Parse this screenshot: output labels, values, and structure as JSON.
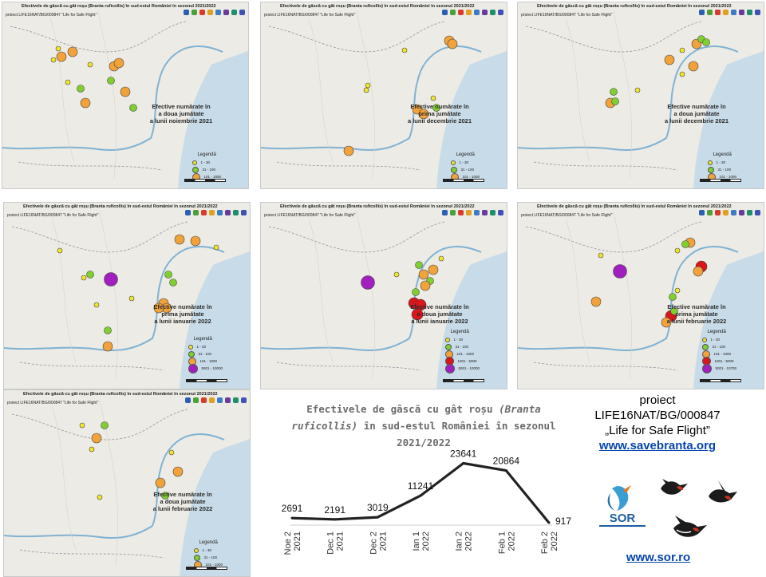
{
  "colors": {
    "water": "#c8dbe8",
    "land": "#ecebe5",
    "small": "#f2e52a",
    "medium": "#7fcf2e",
    "large": "#f2a23a",
    "xlarge": "#d8161b",
    "xxlarge": "#a21fbf",
    "line": "#222222"
  },
  "panels": [
    {
      "title": "Efectivele de gâscă cu gât roșu (Branta ruficollis) în sud-estul României în sezonul 2021/2022",
      "subtitle": "proiect LIFE16NAT/BG/000847 \"Life for Safe Flight\"",
      "caption": [
        "Efective numărate în",
        "a doua jumătate",
        "a lunii noiembrie 2021"
      ],
      "legend_title": "Legendă",
      "legend": [
        "1 - 30",
        "31 - 100",
        "101 - 1000"
      ]
    },
    {
      "title": "Efectivele de gâscă cu gât roșu (Branta ruficollis) în sud-estul României în sezonul 2021/2022",
      "subtitle": "proiect LIFE16NAT/BG/000847 \"Life for Safe Flight\"",
      "caption": [
        "Efective numărate în",
        "prima jumătate",
        "a lunii decembrie 2021"
      ],
      "legend_title": "Legendă",
      "legend": [
        "1 - 30",
        "31 - 100",
        "101 - 1000"
      ]
    },
    {
      "title": "Efectivele de gâscă cu gât roșu (Branta ruficollis) în sud-estul României în sezonul 2021/2022",
      "subtitle": "proiect LIFE16NAT/BG/000847 \"Life for Safe Flight\"",
      "caption": [
        "Efective numărate în",
        "a doua jumătate",
        "a lunii decembrie 2021"
      ],
      "legend_title": "Legendă",
      "legend": [
        "1 - 30",
        "31 - 100",
        "101 - 1000"
      ]
    },
    {
      "title": "Efectivele de gâscă cu gât roșu (Branta ruficollis) în sud-estul României în sezonul 2021/2022",
      "subtitle": "proiect LIFE16NAT/BG/000847 \"Life for Safe Flight\"",
      "caption": [
        "Efective numărate în",
        "prima jumătate",
        "a lunii ianuarie 2022"
      ],
      "legend_title": "Legendă",
      "legend": [
        "1 - 30",
        "31 - 100",
        "101 - 1000",
        "5001 - 10000"
      ]
    },
    {
      "title": "Efectivele de gâscă cu gât roșu (Branta ruficollis) în sud-estul României în sezonul 2021/2022",
      "subtitle": "proiect LIFE16NAT/BG/000847 \"Life for Safe Flight\"",
      "caption": [
        "Efective numărate în",
        "a doua jumătate",
        "a lunii ianuarie 2022"
      ],
      "legend_title": "Legendă",
      "legend": [
        "1 - 30",
        "31 - 100",
        "101 - 1000",
        "1001 - 5000",
        "5001 - 10000"
      ]
    },
    {
      "title": "Efectivele de gâscă cu gât roșu (Branta ruficollis) în sud-estul României în sezonul 2021/2022",
      "subtitle": "proiect LIFE16NAT/BG/000847 \"Life for Safe Flight\"",
      "caption": [
        "Efective numărate în",
        "prima jumătate",
        "a lunii februarie 2022"
      ],
      "legend_title": "Legendă",
      "legend": [
        "1 - 30",
        "31 - 100",
        "101 - 1000",
        "1001 - 5000",
        "5001 - 10700"
      ]
    },
    {
      "title": "Efectivele de gâscă cu gât roșu (Branta ruficollis) în sud-estul României în sezonul 2021/2022",
      "subtitle": "proiect LIFE16NAT/BG/000847 \"Life for Safe Flight\"",
      "caption": [
        "Efective numărate în",
        "a doua jumătate",
        "a lunii februarie 2022"
      ],
      "legend_title": "Legendă",
      "legend": [
        "1 - 30",
        "31 - 100",
        "101 - 1000"
      ]
    }
  ],
  "chart_title": {
    "part1": "Efectivele de gâscă cu gât roșu ",
    "species": "(Branta ruficollis)",
    "part2": " în sud-estul României în sezonul 2021/2022"
  },
  "chart_data": {
    "type": "line",
    "categories": [
      [
        "Noe 2",
        "2021"
      ],
      [
        "Dec 1",
        "2021"
      ],
      [
        "Dec 2",
        "2021"
      ],
      [
        "Ian 1",
        "2022"
      ],
      [
        "Ian 2",
        "2022"
      ],
      [
        "Feb 1",
        "2022"
      ],
      [
        "Feb 2",
        "2022"
      ]
    ],
    "values": [
      2691,
      2191,
      3019,
      11241,
      23641,
      20864,
      917
    ],
    "ylim": [
      0,
      25000
    ],
    "grid": false,
    "legend": "none"
  },
  "project": {
    "line1": "proiect",
    "line2": "LIFE16NAT/BG/000847",
    "line3": "„Life for Safe Flight”",
    "website": "www.savebranta.org"
  },
  "sor": {
    "logo_text": "SOR",
    "website": "www.sor.ro"
  }
}
